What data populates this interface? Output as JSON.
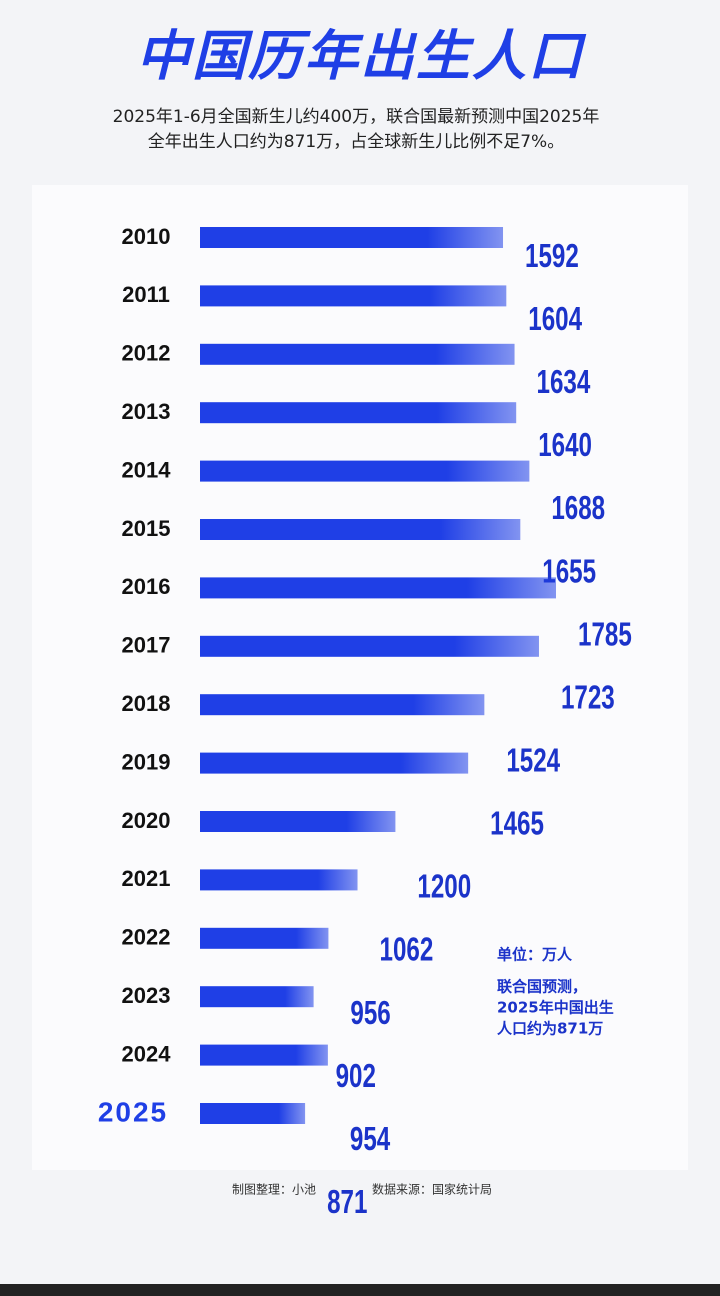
{
  "chart_data": {
    "type": "hbar",
    "title": "中国历年出生人口",
    "subtitle": [
      "2025年1-6月全国新生儿约400万，联合国最新预测中国2025年",
      "全年出生人口约为871万，占全球新生儿比例不足7%。"
    ],
    "categories": [
      "2010",
      "2011",
      "2012",
      "2013",
      "2014",
      "2015",
      "2016",
      "2017",
      "2018",
      "2019",
      "2020",
      "2021",
      "2022",
      "2023",
      "2024",
      "2025"
    ],
    "values": [
      1592,
      1604,
      1634,
      1640,
      1688,
      1655,
      1785,
      1723,
      1524,
      1465,
      1200,
      1062,
      956,
      902,
      954,
      871
    ],
    "color": "#1f3fe6",
    "annotations": [
      "单位：万人",
      "联合国预测，",
      "2025年中国出生",
      "人口约为871万"
    ],
    "footer": [
      "制图整理：小池",
      "数据来源：国家统计局"
    ]
  }
}
